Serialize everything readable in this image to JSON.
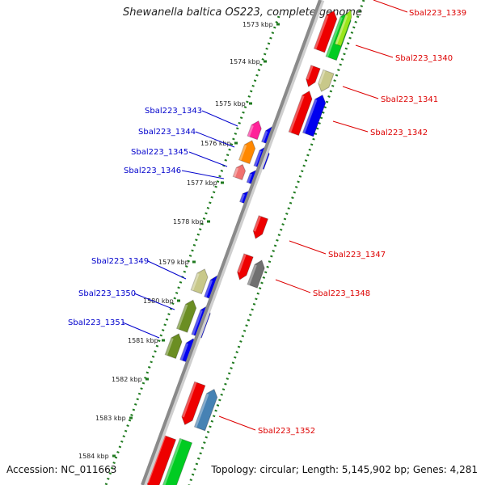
{
  "title": "Shewanella baltica OS223, complete genome",
  "accession": "Accession: NC_011663",
  "topology": "Topology: circular; Length: 5,145,902 bp; Genes: 4,281",
  "colors": {
    "backbone": "#8a8a8a",
    "tick": "#1f7a1f",
    "label_forward": "#0000cc",
    "label_reverse": "#dd0000",
    "blue": "#0000ee",
    "red": "#ee0000",
    "green": "#00cc22",
    "lime": "#99e61a",
    "dark_olive": "#6b8e23",
    "khaki": "#c8c88a",
    "pink": "#ff2299",
    "orange": "#ff8800",
    "salmon": "#f07070",
    "gray": "#707070",
    "steelblue": "#4682b4"
  },
  "kbp_ticks": [
    {
      "label": "1573 kbp"
    },
    {
      "label": "1574 kbp"
    },
    {
      "label": "1575 kbp"
    },
    {
      "label": "1576 kbp"
    },
    {
      "label": "1577 kbp"
    },
    {
      "label": "1578 kbp"
    },
    {
      "label": "1579 kbp"
    },
    {
      "label": "1580 kbp"
    },
    {
      "label": "1581 kbp"
    },
    {
      "label": "1582 kbp"
    },
    {
      "label": "1583 kbp"
    },
    {
      "label": "1584 kbp"
    }
  ],
  "gene_labels_forward": [
    {
      "label": "Sbal223_1343"
    },
    {
      "label": "Sbal223_1344"
    },
    {
      "label": "Sbal223_1345"
    },
    {
      "label": "Sbal223_1346"
    },
    {
      "label": "Sbal223_1349"
    },
    {
      "label": "Sbal223_1350"
    },
    {
      "label": "Sbal223_1351"
    }
  ],
  "gene_labels_reverse": [
    {
      "label": "Sbal223_1339"
    },
    {
      "label": "Sbal223_1340"
    },
    {
      "label": "Sbal223_1341"
    },
    {
      "label": "Sbal223_1342"
    },
    {
      "label": "Sbal223_1347"
    },
    {
      "label": "Sbal223_1348"
    },
    {
      "label": "Sbal223_1352"
    }
  ]
}
